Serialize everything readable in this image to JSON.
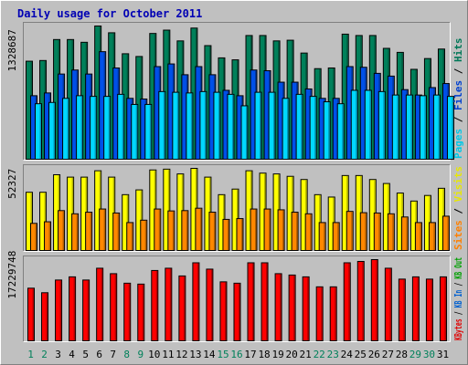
{
  "chart_data": {
    "type": "bar",
    "title": "Daily usage for October 2011",
    "categories": [
      "1",
      "2",
      "3",
      "4",
      "5",
      "6",
      "7",
      "8",
      "9",
      "10",
      "11",
      "12",
      "13",
      "14",
      "15",
      "16",
      "17",
      "18",
      "19",
      "20",
      "21",
      "22",
      "23",
      "24",
      "25",
      "26",
      "27",
      "28",
      "29",
      "30",
      "31"
    ],
    "weekend_days": [
      "1",
      "2",
      "8",
      "9",
      "15",
      "16",
      "22",
      "23",
      "29",
      "30"
    ],
    "panels": [
      {
        "name": "pages-files-hits",
        "max_label": "1328687",
        "legend": [
          {
            "text": "Pages",
            "color": "#00c8e8"
          },
          {
            "text": "Files",
            "color": "#0040d0"
          },
          {
            "text": "Hits",
            "color": "#007858"
          }
        ],
        "series": [
          {
            "name": "Hits",
            "color": "#00805a",
            "values": [
              1000000,
              1007000,
              1221000,
              1221000,
              1193000,
              1359000,
              1290000,
              1076000,
              1048000,
              1283000,
              1317000,
              1207000,
              1338000,
              1159000,
              1034000,
              1014000,
              1262000,
              1262000,
              1207000,
              1214000,
              1083000,
              924000,
              931000,
              1276000,
              1262000,
              1262000,
              1131000,
              1090000,
              917000,
              1027000,
              1124000
            ]
          },
          {
            "name": "Files",
            "color": "#0050e8",
            "values": [
              648000,
              676000,
              869000,
              910000,
              869000,
              1097000,
              931000,
              621000,
              614000,
              945000,
              972000,
              862000,
              945000,
              862000,
              703000,
              648000,
              910000,
              903000,
              786000,
              786000,
              717000,
              621000,
              621000,
              945000,
              938000,
              876000,
              848000,
              710000,
              655000,
              731000,
              772000
            ]
          },
          {
            "name": "Pages",
            "color": "#00d8ff",
            "values": [
              566000,
              579000,
              621000,
              648000,
              641000,
              641000,
              662000,
              559000,
              559000,
              690000,
              683000,
              676000,
              690000,
              683000,
              662000,
              545000,
              683000,
              683000,
              621000,
              662000,
              641000,
              586000,
              566000,
              703000,
              703000,
              690000,
              655000,
              655000,
              648000,
              655000,
              641000
            ]
          }
        ]
      },
      {
        "name": "visits-sites",
        "max_label": "52327",
        "legend": [
          {
            "text": "Sites",
            "color": "#ff8000"
          },
          {
            "text": "Visits",
            "color": "#e8e800"
          }
        ],
        "series": [
          {
            "name": "Visits",
            "color": "#ffff00",
            "values": [
              36500,
              36500,
              47500,
              46000,
              46000,
              50000,
              46000,
              35000,
              38000,
              50500,
              51000,
              48000,
              51500,
              46000,
              35000,
              38500,
              50000,
              48500,
              48000,
              46500,
              44500,
              35000,
              33500,
              47000,
              47000,
              44500,
              42000,
              36000,
              31000,
              34500,
              39000
            ]
          },
          {
            "name": "Sites",
            "color": "#ff8800",
            "values": [
              17000,
              18000,
              25000,
              23000,
              24000,
              26000,
              23500,
              17500,
              19000,
              26000,
              24800,
              25000,
              26500,
              24000,
              19500,
              20000,
              26000,
              26000,
              25500,
              24000,
              23000,
              17500,
              17500,
              24500,
              23700,
              23500,
              23000,
              21000,
              17500,
              17500,
              21500
            ]
          }
        ]
      },
      {
        "name": "kbytes",
        "max_label": "17229748",
        "legend": [
          {
            "text": "KBytes",
            "color": "#e00000"
          },
          {
            "text": "KB In",
            "color": "#0060d0"
          },
          {
            "text": "KB Out",
            "color": "#00a000"
          }
        ],
        "series": [
          {
            "name": "KBytes",
            "color": "#ff0000",
            "values": [
              11600000,
              10600000,
              13400000,
              14100000,
              13400000,
              16000000,
              14800000,
              12700000,
              12500000,
              15500000,
              16000000,
              14300000,
              17200000,
              15800000,
              13000000,
              12700000,
              17200000,
              17200000,
              14800000,
              14500000,
              14100000,
              11900000,
              11900000,
              17200000,
              17500000,
              17900000,
              16000000,
              13600000,
              14100000,
              13600000,
              14100000
            ]
          }
        ]
      }
    ]
  }
}
